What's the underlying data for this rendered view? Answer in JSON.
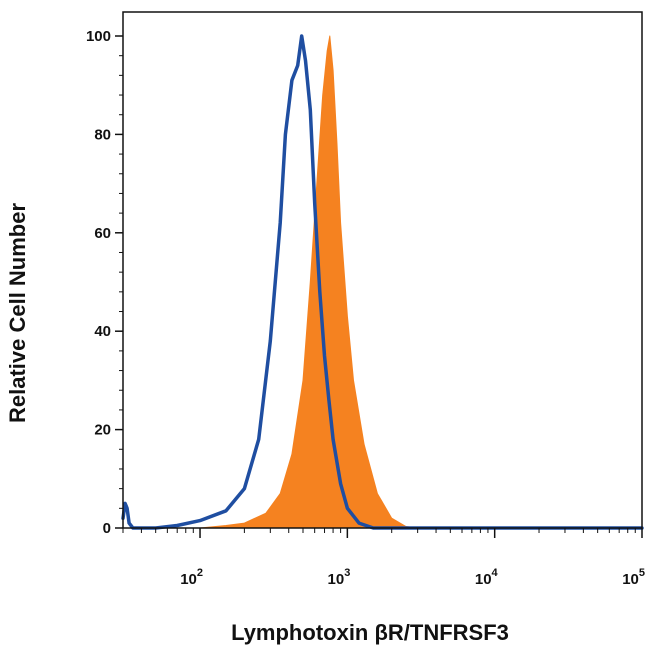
{
  "chart_data": {
    "type": "area",
    "xlabel": "Lymphotoxin βR/TNFRSF3",
    "ylabel": "Relative Cell Number",
    "x_scale": "log",
    "xlim": [
      30,
      100000
    ],
    "ylim": [
      0,
      100
    ],
    "grid": false,
    "y_ticks": [
      {
        "value": 0,
        "label": "0"
      },
      {
        "value": 20,
        "label": "20"
      },
      {
        "value": 40,
        "label": "40"
      },
      {
        "value": 60,
        "label": "60"
      },
      {
        "value": 80,
        "label": "80"
      },
      {
        "value": 100,
        "label": "100"
      }
    ],
    "x_ticks": [
      {
        "value": 100,
        "base": "10",
        "exp": "2"
      },
      {
        "value": 1000,
        "base": "10",
        "exp": "3"
      },
      {
        "value": 10000,
        "base": "10",
        "exp": "4"
      },
      {
        "value": 100000,
        "base": "10",
        "exp": "5"
      }
    ],
    "series": [
      {
        "style": "filled",
        "color": "#F58220",
        "x": [
          30,
          100,
          150,
          200,
          280,
          350,
          420,
          500,
          560,
          620,
          680,
          730,
          760,
          800,
          850,
          900,
          1000,
          1100,
          1300,
          1600,
          2000,
          2500,
          3000,
          100000
        ],
        "y": [
          0,
          0,
          0.5,
          1,
          3,
          7,
          15,
          30,
          50,
          70,
          88,
          97,
          100,
          93,
          78,
          62,
          43,
          30,
          17,
          7,
          2,
          0.3,
          0,
          0
        ]
      },
      {
        "style": "line",
        "color": "#1F4EA1",
        "x": [
          30,
          31,
          32,
          33,
          35,
          40,
          50,
          70,
          100,
          150,
          200,
          250,
          300,
          350,
          380,
          420,
          460,
          490,
          520,
          560,
          600,
          650,
          700,
          750,
          800,
          900,
          1000,
          1200,
          1500,
          2000,
          100000
        ],
        "y": [
          2,
          5,
          4,
          1,
          0,
          0,
          0,
          0.5,
          1.5,
          3.5,
          8,
          18,
          38,
          62,
          80,
          91,
          94,
          100,
          95,
          85,
          66,
          48,
          35,
          26,
          18,
          9,
          4,
          1,
          0,
          0,
          0
        ]
      }
    ]
  }
}
